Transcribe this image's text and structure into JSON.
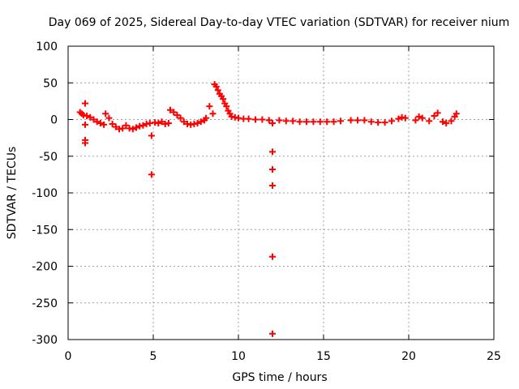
{
  "chart_data": {
    "type": "scatter",
    "title": "Day 069 of 2025, Sidereal Day-to-day VTEC variation (SDTVAR) for receiver nium",
    "xlabel": "GPS time / hours",
    "ylabel": "SDTVAR / TECUs",
    "xlim": [
      0,
      25
    ],
    "ylim": [
      -300,
      100
    ],
    "xticks": [
      0,
      5,
      10,
      15,
      20,
      25
    ],
    "yticks": [
      100,
      50,
      0,
      -50,
      -100,
      -150,
      -200,
      -250,
      -300
    ],
    "xtick_labels": [
      "0",
      "5",
      "10",
      "15",
      "20",
      "25"
    ],
    "ytick_labels": [
      "100",
      "50",
      "0",
      "-50",
      "-100",
      "-150",
      "-200",
      "-250",
      "-300"
    ],
    "grid": true,
    "marker": "+",
    "color": "#ff0000",
    "series": [
      {
        "name": "SDTVAR",
        "points": [
          [
            0.7,
            10
          ],
          [
            0.8,
            8
          ],
          [
            0.9,
            6
          ],
          [
            1.0,
            22
          ],
          [
            1.0,
            -7
          ],
          [
            1.0,
            -28
          ],
          [
            1.0,
            -32
          ],
          [
            1.1,
            5
          ],
          [
            1.3,
            3
          ],
          [
            1.5,
            0
          ],
          [
            1.7,
            -3
          ],
          [
            1.9,
            -5
          ],
          [
            2.1,
            -7
          ],
          [
            2.2,
            8
          ],
          [
            2.4,
            2
          ],
          [
            2.6,
            -6
          ],
          [
            2.8,
            -10
          ],
          [
            3.0,
            -13
          ],
          [
            3.2,
            -12
          ],
          [
            3.4,
            -8
          ],
          [
            3.6,
            -12
          ],
          [
            3.8,
            -13
          ],
          [
            4.0,
            -11
          ],
          [
            4.2,
            -9
          ],
          [
            4.4,
            -8
          ],
          [
            4.6,
            -6
          ],
          [
            4.8,
            -5
          ],
          [
            4.9,
            -22
          ],
          [
            4.9,
            -75
          ],
          [
            5.1,
            -4
          ],
          [
            5.3,
            -5
          ],
          [
            5.5,
            -3
          ],
          [
            5.7,
            -6
          ],
          [
            5.9,
            -5
          ],
          [
            6.0,
            13
          ],
          [
            6.2,
            10
          ],
          [
            6.4,
            6
          ],
          [
            6.6,
            2
          ],
          [
            6.8,
            -3
          ],
          [
            7.0,
            -6
          ],
          [
            7.2,
            -7
          ],
          [
            7.4,
            -6
          ],
          [
            7.6,
            -5
          ],
          [
            7.8,
            -3
          ],
          [
            8.0,
            -1
          ],
          [
            8.1,
            2
          ],
          [
            8.3,
            18
          ],
          [
            8.5,
            8
          ],
          [
            8.6,
            48
          ],
          [
            8.7,
            45
          ],
          [
            8.8,
            40
          ],
          [
            8.9,
            35
          ],
          [
            9.0,
            32
          ],
          [
            9.1,
            28
          ],
          [
            9.2,
            22
          ],
          [
            9.3,
            18
          ],
          [
            9.4,
            12
          ],
          [
            9.5,
            8
          ],
          [
            9.6,
            4
          ],
          [
            9.8,
            3
          ],
          [
            10.0,
            2
          ],
          [
            10.3,
            1
          ],
          [
            10.6,
            1
          ],
          [
            11.0,
            0
          ],
          [
            11.4,
            0
          ],
          [
            11.8,
            -1
          ],
          [
            12.0,
            -5
          ],
          [
            12.0,
            -44
          ],
          [
            12.0,
            -68
          ],
          [
            12.0,
            -90
          ],
          [
            12.0,
            -187
          ],
          [
            12.0,
            -292
          ],
          [
            12.4,
            -1
          ],
          [
            12.8,
            -2
          ],
          [
            13.2,
            -2
          ],
          [
            13.6,
            -3
          ],
          [
            14.0,
            -3
          ],
          [
            14.4,
            -3
          ],
          [
            14.8,
            -3
          ],
          [
            15.2,
            -3
          ],
          [
            15.6,
            -3
          ],
          [
            16.0,
            -2
          ],
          [
            16.6,
            -1
          ],
          [
            17.0,
            -1
          ],
          [
            17.4,
            -1
          ],
          [
            17.8,
            -3
          ],
          [
            18.2,
            -4
          ],
          [
            18.6,
            -4
          ],
          [
            19.0,
            -2
          ],
          [
            19.4,
            1
          ],
          [
            19.6,
            3
          ],
          [
            19.8,
            2
          ],
          [
            20.4,
            -1
          ],
          [
            20.6,
            4
          ],
          [
            20.8,
            2
          ],
          [
            21.2,
            -2
          ],
          [
            21.5,
            5
          ],
          [
            21.7,
            9
          ],
          [
            22.0,
            -3
          ],
          [
            22.2,
            -5
          ],
          [
            22.5,
            -2
          ],
          [
            22.7,
            4
          ],
          [
            22.8,
            8
          ]
        ]
      }
    ]
  }
}
